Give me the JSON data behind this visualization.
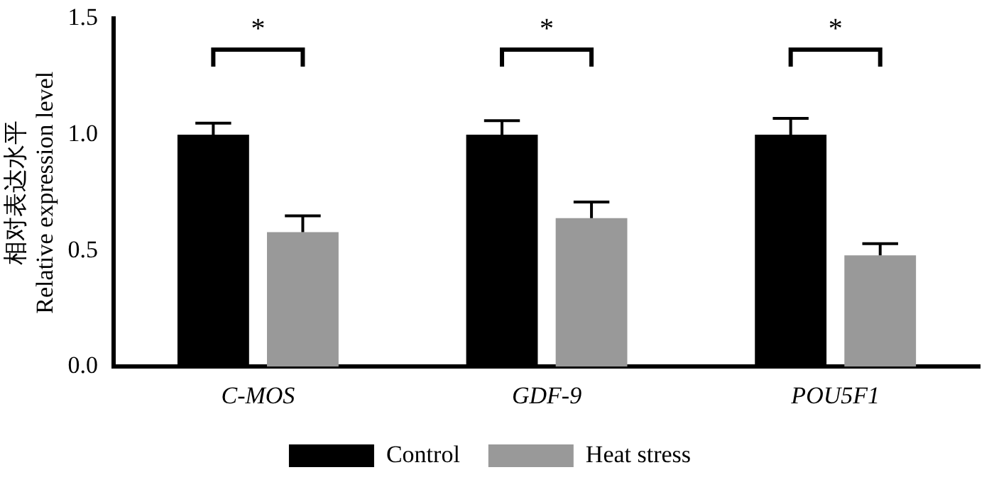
{
  "chart_data": {
    "type": "bar",
    "ylabel": "相对表达水平\nRelative expression level",
    "categories": [
      "C-MOS",
      "GDF-9",
      "POU5F1"
    ],
    "series": [
      {
        "name": "Control",
        "color": "#000000",
        "values": [
          1.0,
          1.0,
          1.0
        ],
        "errors": [
          [
            1.0,
            1.05
          ],
          [
            1.0,
            1.06
          ],
          [
            1.0,
            1.07
          ]
        ]
      },
      {
        "name": "Heat stress",
        "color": "#999999",
        "values": [
          0.58,
          0.64,
          0.48
        ],
        "errors": [
          [
            0.58,
            0.65
          ],
          [
            0.64,
            0.71
          ],
          [
            0.48,
            0.53
          ]
        ]
      }
    ],
    "ylim": [
      0,
      1.5
    ],
    "yticks": [
      {
        "value": 0,
        "label": "0.0"
      },
      0.5,
      {
        "value": 1,
        "label": "1.0"
      },
      1.5
    ],
    "grid": false,
    "legend": "bottom",
    "annotations": [
      "*",
      "*",
      "*"
    ]
  }
}
